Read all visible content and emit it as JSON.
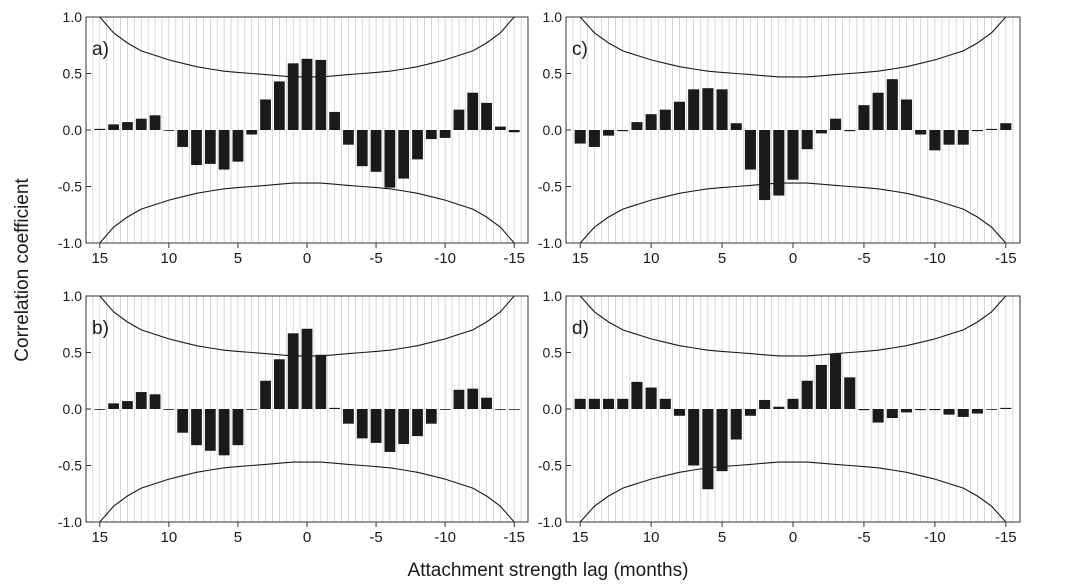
{
  "figure": {
    "ylabel": "Correlation coefficient",
    "xlabel": "Attachment strength lag (months)"
  },
  "chart_data": [
    {
      "type": "bar",
      "panel_label": "a)",
      "x": [
        15,
        14,
        13,
        12,
        11,
        10,
        9,
        8,
        7,
        6,
        5,
        4,
        3,
        2,
        1,
        0,
        -1,
        -2,
        -3,
        -4,
        -5,
        -6,
        -7,
        -8,
        -9,
        -10,
        -11,
        -12,
        -13,
        -14,
        -15
      ],
      "values": [
        0.01,
        0.05,
        0.07,
        0.1,
        0.13,
        0.0,
        -0.15,
        -0.31,
        -0.3,
        -0.35,
        -0.28,
        -0.04,
        0.27,
        0.43,
        0.59,
        0.63,
        0.62,
        0.16,
        -0.13,
        -0.32,
        -0.37,
        -0.51,
        -0.43,
        -0.26,
        -0.08,
        -0.07,
        0.18,
        0.33,
        0.24,
        0.03,
        -0.02
      ],
      "confidence_upper": [
        1.0,
        0.86,
        0.77,
        0.7,
        0.66,
        0.62,
        0.59,
        0.56,
        0.54,
        0.52,
        0.51,
        0.5,
        0.49,
        0.48,
        0.47,
        0.47,
        0.47,
        0.48,
        0.49,
        0.5,
        0.51,
        0.52,
        0.54,
        0.56,
        0.59,
        0.62,
        0.66,
        0.7,
        0.77,
        0.86,
        1.0
      ],
      "confidence_lower": [
        -1.0,
        -0.86,
        -0.77,
        -0.7,
        -0.66,
        -0.62,
        -0.59,
        -0.56,
        -0.54,
        -0.52,
        -0.51,
        -0.5,
        -0.49,
        -0.48,
        -0.47,
        -0.47,
        -0.47,
        -0.48,
        -0.49,
        -0.5,
        -0.51,
        -0.52,
        -0.54,
        -0.56,
        -0.59,
        -0.62,
        -0.66,
        -0.7,
        -0.77,
        -0.86,
        -1.0
      ],
      "ylim": [
        -1.0,
        1.0
      ],
      "xlim": [
        16,
        -16
      ],
      "xticks": [
        15,
        10,
        5,
        0,
        -5,
        -10,
        -15
      ],
      "xtick_labels": [
        "15",
        "10",
        "5",
        "0",
        "-5",
        "-10",
        "-15"
      ],
      "yticks": [
        1.0,
        0.5,
        0.0,
        -0.5,
        -1.0
      ],
      "ytick_labels": [
        "1.0",
        "0.5",
        "0.0",
        "-0.5",
        "-1.0"
      ],
      "grid": "vertical"
    },
    {
      "type": "bar",
      "panel_label": "c)",
      "x": [
        15,
        14,
        13,
        12,
        11,
        10,
        9,
        8,
        7,
        6,
        5,
        4,
        3,
        2,
        1,
        0,
        -1,
        -2,
        -3,
        -4,
        -5,
        -6,
        -7,
        -8,
        -9,
        -10,
        -11,
        -12,
        -13,
        -14,
        -15
      ],
      "values": [
        -0.12,
        -0.15,
        -0.05,
        -0.01,
        0.07,
        0.14,
        0.18,
        0.25,
        0.36,
        0.37,
        0.36,
        0.06,
        -0.35,
        -0.62,
        -0.58,
        -0.44,
        -0.17,
        -0.03,
        0.1,
        -0.01,
        0.22,
        0.33,
        0.45,
        0.27,
        -0.04,
        -0.18,
        -0.13,
        -0.13,
        -0.01,
        0.01,
        0.06
      ],
      "confidence_upper": [
        1.0,
        0.86,
        0.77,
        0.7,
        0.66,
        0.62,
        0.59,
        0.56,
        0.54,
        0.52,
        0.51,
        0.5,
        0.49,
        0.48,
        0.47,
        0.47,
        0.47,
        0.48,
        0.49,
        0.5,
        0.51,
        0.52,
        0.54,
        0.56,
        0.59,
        0.62,
        0.66,
        0.7,
        0.77,
        0.86,
        1.0
      ],
      "confidence_lower": [
        -1.0,
        -0.86,
        -0.77,
        -0.7,
        -0.66,
        -0.62,
        -0.59,
        -0.56,
        -0.54,
        -0.52,
        -0.51,
        -0.5,
        -0.49,
        -0.48,
        -0.47,
        -0.47,
        -0.47,
        -0.48,
        -0.49,
        -0.5,
        -0.51,
        -0.52,
        -0.54,
        -0.56,
        -0.59,
        -0.62,
        -0.66,
        -0.7,
        -0.77,
        -0.86,
        -1.0
      ],
      "ylim": [
        -1.0,
        1.0
      ],
      "xlim": [
        16,
        -16
      ],
      "xticks": [
        15,
        10,
        5,
        0,
        -5,
        -10,
        -15
      ],
      "xtick_labels": [
        "15",
        "10",
        "5",
        "0",
        "-5",
        "-10",
        "-15"
      ],
      "yticks": [
        1.0,
        0.5,
        0.0,
        -0.5,
        -1.0
      ],
      "ytick_labels": [
        "1.0",
        "0.5",
        "0.0",
        "-0.5",
        "-1.0"
      ],
      "grid": "vertical"
    },
    {
      "type": "bar",
      "panel_label": "b)",
      "x": [
        15,
        14,
        13,
        12,
        11,
        10,
        9,
        8,
        7,
        6,
        5,
        4,
        3,
        2,
        1,
        0,
        -1,
        -2,
        -3,
        -4,
        -5,
        -6,
        -7,
        -8,
        -9,
        -10,
        -11,
        -12,
        -13,
        -14,
        -15
      ],
      "values": [
        0.0,
        0.05,
        0.07,
        0.15,
        0.13,
        0.0,
        -0.21,
        -0.32,
        -0.37,
        -0.41,
        -0.32,
        0.0,
        0.25,
        0.44,
        0.67,
        0.71,
        0.48,
        0.01,
        -0.13,
        -0.26,
        -0.3,
        -0.38,
        -0.31,
        -0.24,
        -0.13,
        0.0,
        0.17,
        0.18,
        0.1,
        0.0,
        0.0
      ],
      "confidence_upper": [
        1.0,
        0.86,
        0.77,
        0.7,
        0.66,
        0.62,
        0.59,
        0.56,
        0.54,
        0.52,
        0.51,
        0.5,
        0.49,
        0.48,
        0.47,
        0.47,
        0.47,
        0.48,
        0.49,
        0.5,
        0.51,
        0.52,
        0.54,
        0.56,
        0.59,
        0.62,
        0.66,
        0.7,
        0.77,
        0.86,
        1.0
      ],
      "confidence_lower": [
        -1.0,
        -0.86,
        -0.77,
        -0.7,
        -0.66,
        -0.62,
        -0.59,
        -0.56,
        -0.54,
        -0.52,
        -0.51,
        -0.5,
        -0.49,
        -0.48,
        -0.47,
        -0.47,
        -0.47,
        -0.48,
        -0.49,
        -0.5,
        -0.51,
        -0.52,
        -0.54,
        -0.56,
        -0.59,
        -0.62,
        -0.66,
        -0.7,
        -0.77,
        -0.86,
        -1.0
      ],
      "ylim": [
        -1.0,
        1.0
      ],
      "xlim": [
        16,
        -16
      ],
      "xticks": [
        15,
        10,
        5,
        0,
        -5,
        -10,
        -15
      ],
      "xtick_labels": [
        "15",
        "10",
        "5",
        "0",
        "-5",
        "-10",
        "-15"
      ],
      "yticks": [
        1.0,
        0.5,
        0.0,
        -0.5,
        -1.0
      ],
      "ytick_labels": [
        "1.0",
        "0.5",
        "0.0",
        "-0.5",
        "-1.0"
      ],
      "grid": "vertical"
    },
    {
      "type": "bar",
      "panel_label": "d)",
      "x": [
        15,
        14,
        13,
        12,
        11,
        10,
        9,
        8,
        7,
        6,
        5,
        4,
        3,
        2,
        1,
        0,
        -1,
        -2,
        -3,
        -4,
        -5,
        -6,
        -7,
        -8,
        -9,
        -10,
        -11,
        -12,
        -13,
        -14,
        -15
      ],
      "values": [
        0.09,
        0.09,
        0.09,
        0.09,
        0.24,
        0.19,
        0.09,
        -0.06,
        -0.5,
        -0.71,
        -0.55,
        -0.27,
        -0.06,
        0.08,
        0.02,
        0.09,
        0.25,
        0.39,
        0.49,
        0.28,
        -0.01,
        -0.12,
        -0.08,
        -0.03,
        -0.01,
        -0.01,
        -0.05,
        -0.07,
        -0.04,
        0.0,
        0.01
      ],
      "confidence_upper": [
        1.0,
        0.86,
        0.77,
        0.7,
        0.66,
        0.62,
        0.59,
        0.56,
        0.54,
        0.52,
        0.51,
        0.5,
        0.49,
        0.48,
        0.47,
        0.47,
        0.47,
        0.48,
        0.49,
        0.5,
        0.51,
        0.52,
        0.54,
        0.56,
        0.59,
        0.62,
        0.66,
        0.7,
        0.77,
        0.86,
        1.0
      ],
      "confidence_lower": [
        -1.0,
        -0.86,
        -0.77,
        -0.7,
        -0.66,
        -0.62,
        -0.59,
        -0.56,
        -0.54,
        -0.52,
        -0.51,
        -0.5,
        -0.49,
        -0.48,
        -0.47,
        -0.47,
        -0.47,
        -0.48,
        -0.49,
        -0.5,
        -0.51,
        -0.52,
        -0.54,
        -0.56,
        -0.59,
        -0.62,
        -0.66,
        -0.7,
        -0.77,
        -0.86,
        -1.0
      ],
      "ylim": [
        -1.0,
        1.0
      ],
      "xlim": [
        16,
        -16
      ],
      "xticks": [
        15,
        10,
        5,
        0,
        -5,
        -10,
        -15
      ],
      "xtick_labels": [
        "15",
        "10",
        "5",
        "0",
        "-5",
        "-10",
        "-15"
      ],
      "yticks": [
        1.0,
        0.5,
        0.0,
        -0.5,
        -1.0
      ],
      "ytick_labels": [
        "1.0",
        "0.5",
        "0.0",
        "-0.5",
        "-1.0"
      ],
      "grid": "vertical"
    }
  ],
  "colors": {
    "bar": "#1a1a1a",
    "confidence_line": "#1a1a1a",
    "grid": "#c8c8c8",
    "frame": "#333333"
  }
}
